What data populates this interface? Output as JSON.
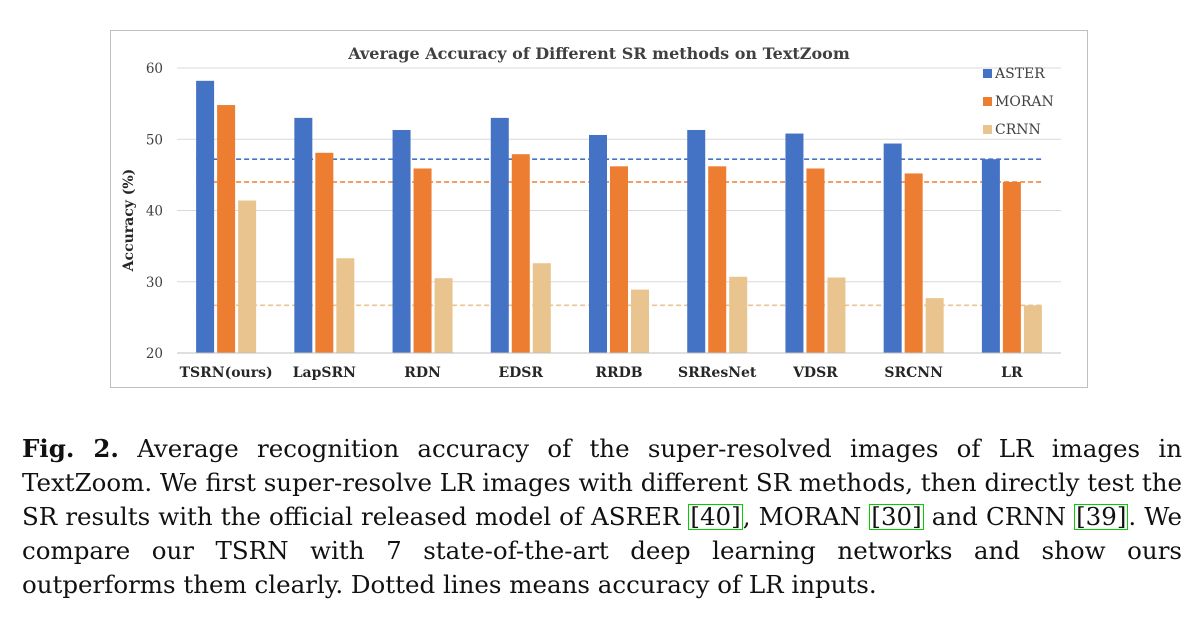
{
  "chart_data": {
    "type": "bar",
    "title": "Average Accuracy  of Different SR methods on TextZoom",
    "xlabel": "",
    "ylabel": "Accuracy  (%)",
    "ylim": [
      20,
      60
    ],
    "yticks": [
      "20",
      "30",
      "40",
      "50",
      "60"
    ],
    "grid": true,
    "legend_position": "right",
    "categories": [
      "TSRN(ours)",
      "LapSRN",
      "RDN",
      "EDSR",
      "RRDB",
      "SRResNet",
      "VDSR",
      "SRCNN",
      "LR"
    ],
    "series": [
      {
        "name": "ASTER",
        "color": "#4472c4",
        "values": [
          58.2,
          53.0,
          51.3,
          53.0,
          50.6,
          51.3,
          50.8,
          49.4,
          47.2
        ]
      },
      {
        "name": "MORAN",
        "color": "#ed7d31",
        "values": [
          54.8,
          48.1,
          45.9,
          47.9,
          46.2,
          46.2,
          45.9,
          45.2,
          44.0
        ]
      },
      {
        "name": "CRNN",
        "color": "#e9c48e",
        "values": [
          41.4,
          33.3,
          30.5,
          32.6,
          28.9,
          30.7,
          30.6,
          27.7,
          26.7
        ]
      }
    ],
    "reference_lines": [
      {
        "series": "ASTER",
        "value": 47.2,
        "color": "#4472c4"
      },
      {
        "series": "MORAN",
        "value": 44.0,
        "color": "#ed7d31"
      },
      {
        "series": "CRNN",
        "value": 26.7,
        "color": "#e9c48e"
      }
    ]
  },
  "caption": {
    "label": "Fig. 2.",
    "text_1": " Average recognition accuracy of the super-resolved images of LR images in TextZoom. We first super-resolve LR images with different SR methods, then directly test the SR results with the official released model of ASRER ",
    "ref_1": "[40]",
    "text_2": ", MORAN ",
    "ref_2": "[30]",
    "text_3": " and CRNN ",
    "ref_3": "[39]",
    "text_4": ". We compare our TSRN with 7 state-of-the-art deep learning networks and show ours outperforms them clearly. Dotted lines means accuracy of LR inputs."
  }
}
